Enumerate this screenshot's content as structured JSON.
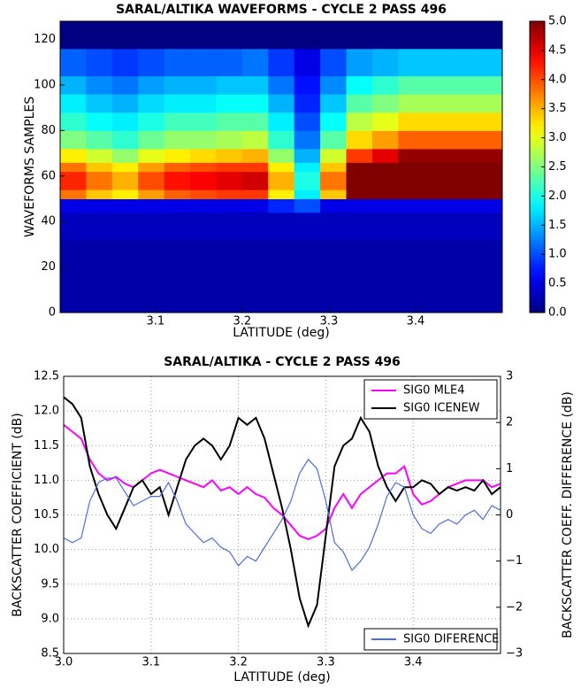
{
  "chart_data": [
    {
      "type": "heatmap",
      "title": "SARAL/ALTIKA WAVEFORMS - CYCLE 2 PASS 496",
      "xlabel": "LATITUDE (deg)",
      "ylabel": "WAVEFORMS SAMPLES",
      "colormap": "jet",
      "x_bins": [
        2.99,
        3.02,
        3.05,
        3.08,
        3.11,
        3.14,
        3.17,
        3.2,
        3.23,
        3.26,
        3.29,
        3.32,
        3.35,
        3.38,
        3.41,
        3.44,
        3.47,
        3.5
      ],
      "y_bins": [
        0,
        16,
        32,
        44,
        50,
        54,
        58,
        62,
        66,
        72,
        80,
        88,
        96,
        104,
        116,
        128
      ],
      "z": [
        [
          0.2,
          0.2,
          0.2,
          0.2,
          0.2,
          0.2,
          0.2,
          0.2,
          0.2,
          0.2,
          0.2,
          0.2,
          0.2,
          0.2,
          0.2,
          0.2,
          0.2
        ],
        [
          0.2,
          0.2,
          0.2,
          0.2,
          0.2,
          0.2,
          0.2,
          0.2,
          0.2,
          0.2,
          0.2,
          0.2,
          0.2,
          0.2,
          0.2,
          0.2,
          0.2
        ],
        [
          0.3,
          0.3,
          0.3,
          0.3,
          0.3,
          0.3,
          0.3,
          0.3,
          0.3,
          0.3,
          0.3,
          0.3,
          0.3,
          0.3,
          0.3,
          0.3,
          0.3
        ],
        [
          0.5,
          0.5,
          0.5,
          0.5,
          0.5,
          0.5,
          0.5,
          0.5,
          0.8,
          1.0,
          0.5,
          0.5,
          0.5,
          0.5,
          0.5,
          0.5,
          0.5
        ],
        [
          3.8,
          3.4,
          3.2,
          3.6,
          3.9,
          4.0,
          4.1,
          4.1,
          3.2,
          1.8,
          3.4,
          5.0,
          5.0,
          5.0,
          5.0,
          5.0,
          5.0
        ],
        [
          4.2,
          3.8,
          3.5,
          4.0,
          4.3,
          4.4,
          4.5,
          4.6,
          3.5,
          2.0,
          3.8,
          5.0,
          5.0,
          5.0,
          5.0,
          5.0,
          5.0
        ],
        [
          4.2,
          3.8,
          3.5,
          4.0,
          4.3,
          4.4,
          4.5,
          4.6,
          3.5,
          2.0,
          3.8,
          5.0,
          5.0,
          5.0,
          5.0,
          5.0,
          5.0
        ],
        [
          3.8,
          3.4,
          3.2,
          3.6,
          3.9,
          4.0,
          4.1,
          4.1,
          3.2,
          1.8,
          3.4,
          5.0,
          5.0,
          5.0,
          5.0,
          5.0,
          5.0
        ],
        [
          3.2,
          2.9,
          2.6,
          3.0,
          3.2,
          3.3,
          3.4,
          3.5,
          2.6,
          1.5,
          2.9,
          4.1,
          4.5,
          4.9,
          4.9,
          4.9,
          4.9
        ],
        [
          2.5,
          2.3,
          2.1,
          2.4,
          2.6,
          2.6,
          2.7,
          2.8,
          2.1,
          1.2,
          2.3,
          3.3,
          3.6,
          3.9,
          3.9,
          3.9,
          3.9
        ],
        [
          2.1,
          1.9,
          1.8,
          2.0,
          2.2,
          2.2,
          2.3,
          2.3,
          1.8,
          1.0,
          1.9,
          2.8,
          3.0,
          3.3,
          3.3,
          3.3,
          3.3
        ],
        [
          1.8,
          1.6,
          1.5,
          1.7,
          1.8,
          1.8,
          1.9,
          1.9,
          1.5,
          0.8,
          1.6,
          2.3,
          2.5,
          2.7,
          2.7,
          2.7,
          2.7
        ],
        [
          1.5,
          1.3,
          1.2,
          1.4,
          1.5,
          1.5,
          1.6,
          1.6,
          1.2,
          0.7,
          1.3,
          1.9,
          2.1,
          2.3,
          2.3,
          2.3,
          2.3
        ],
        [
          1.1,
          1.0,
          0.9,
          1.0,
          1.1,
          1.1,
          1.1,
          1.2,
          0.9,
          0.5,
          1.0,
          1.4,
          1.5,
          1.6,
          1.6,
          1.6,
          1.6
        ],
        [
          0,
          0,
          0,
          0,
          0,
          0,
          0,
          0,
          0,
          0,
          0,
          0,
          0,
          0,
          0,
          0,
          0
        ]
      ],
      "xlim": [
        2.99,
        3.5
      ],
      "xticks": [
        3.1,
        3.2,
        3.3,
        3.4
      ],
      "ylim": [
        0,
        128
      ],
      "yticks": [
        0,
        20,
        40,
        60,
        80,
        100,
        120
      ],
      "zlim": [
        0,
        5
      ],
      "zticks": [
        {
          "value": 0,
          "label": "0.0"
        },
        0.5,
        {
          "value": 1,
          "label": "1.0"
        },
        1.5,
        {
          "value": 2,
          "label": "2.0"
        },
        2.5,
        {
          "value": 3,
          "label": "3.0"
        },
        3.5,
        {
          "value": 4,
          "label": "4.0"
        },
        4.5,
        {
          "value": 5,
          "label": "5.0"
        }
      ]
    },
    {
      "type": "line",
      "title": "SARAL/ALTIKA - CYCLE 2 PASS 496",
      "xlabel": "LATITUDE (deg)",
      "ylabel": "BACKSCATTER COEFFICIENT (dB)",
      "y2label": "BACKSCATTER COEFF. DIFFERENCE (dB)",
      "grid": true,
      "x": [
        3.0,
        3.01,
        3.02,
        3.03,
        3.04,
        3.05,
        3.06,
        3.07,
        3.08,
        3.09,
        3.1,
        3.11,
        3.12,
        3.13,
        3.14,
        3.15,
        3.16,
        3.17,
        3.18,
        3.19,
        3.2,
        3.21,
        3.22,
        3.23,
        3.24,
        3.25,
        3.26,
        3.27,
        3.28,
        3.29,
        3.3,
        3.31,
        3.32,
        3.33,
        3.34,
        3.35,
        3.36,
        3.37,
        3.38,
        3.39,
        3.4,
        3.41,
        3.42,
        3.43,
        3.44,
        3.45,
        3.46,
        3.47,
        3.48,
        3.49,
        3.5
      ],
      "series": [
        {
          "name": "SIG0 MLE4",
          "color": "#ff00ff",
          "legend_loc": "upper right",
          "values": [
            11.8,
            11.7,
            11.6,
            11.3,
            11.1,
            11.0,
            11.05,
            10.95,
            10.9,
            11.0,
            11.1,
            11.15,
            11.1,
            11.05,
            11.0,
            10.95,
            10.9,
            11.0,
            10.85,
            10.9,
            10.8,
            10.9,
            10.8,
            10.75,
            10.6,
            10.5,
            10.35,
            10.2,
            10.15,
            10.2,
            10.3,
            10.6,
            10.8,
            10.6,
            10.8,
            10.9,
            11.0,
            11.1,
            11.1,
            11.2,
            10.8,
            10.65,
            10.7,
            10.8,
            10.9,
            10.95,
            11.0,
            11.0,
            11.0,
            10.9,
            10.95
          ]
        },
        {
          "name": "SIG0 ICENEW",
          "color": "#000000",
          "legend_loc": "upper right",
          "values": [
            12.2,
            12.1,
            11.9,
            11.2,
            10.8,
            10.5,
            10.3,
            10.6,
            10.9,
            11.0,
            10.8,
            10.9,
            10.5,
            10.9,
            11.3,
            11.5,
            11.6,
            11.5,
            11.3,
            11.5,
            11.9,
            11.8,
            11.9,
            11.6,
            11.1,
            10.6,
            10.0,
            9.3,
            8.9,
            9.2,
            10.2,
            11.2,
            11.5,
            11.6,
            11.9,
            11.7,
            11.2,
            10.9,
            10.7,
            10.9,
            10.9,
            11.0,
            10.95,
            10.8,
            10.9,
            10.85,
            10.9,
            10.85,
            11.0,
            10.8,
            10.9
          ]
        },
        {
          "name": "SIG0 DIFERENCE",
          "color": "#4a6fe0",
          "axis": "y2",
          "legend_loc": "lower right",
          "values": [
            -0.5,
            -0.6,
            -0.5,
            0.3,
            0.7,
            0.8,
            0.8,
            0.5,
            0.2,
            0.3,
            0.4,
            0.4,
            0.7,
            0.3,
            -0.2,
            -0.4,
            -0.6,
            -0.5,
            -0.7,
            -0.8,
            -1.1,
            -0.9,
            -1.0,
            -0.7,
            -0.4,
            -0.1,
            0.3,
            0.9,
            1.2,
            1.0,
            0.3,
            -0.6,
            -0.8,
            -1.2,
            -1.0,
            -0.7,
            -0.2,
            0.4,
            0.7,
            0.6,
            0.0,
            -0.3,
            -0.4,
            -0.2,
            -0.1,
            -0.2,
            0.0,
            0.1,
            -0.1,
            0.2,
            0.1
          ]
        }
      ],
      "xlim": [
        3.0,
        3.5
      ],
      "xticks": [
        {
          "value": 3,
          "label": "3.0"
        },
        3.1,
        3.2,
        3.3,
        3.4
      ],
      "ylim": [
        8.5,
        12.5
      ],
      "yticks": [
        8.5,
        {
          "value": 9,
          "label": "9.0"
        },
        9.5,
        {
          "value": 10,
          "label": "10.0"
        },
        10.5,
        {
          "value": 11,
          "label": "11.0"
        },
        11.5,
        {
          "value": 12,
          "label": "12.0"
        },
        12.5
      ],
      "y2lim": [
        -3,
        3
      ],
      "y2ticks": [
        {
          "value": -3,
          "label": "−3"
        },
        {
          "value": -2,
          "label": "−2"
        },
        {
          "value": -1,
          "label": "−1"
        },
        0,
        1,
        2,
        3
      ]
    }
  ]
}
